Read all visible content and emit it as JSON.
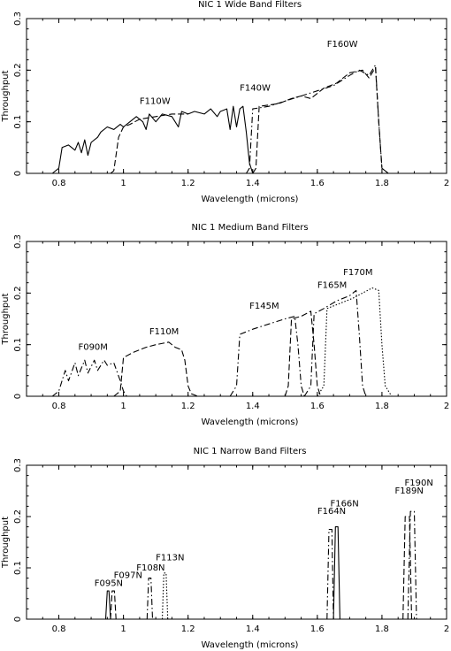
{
  "chart_data": [
    {
      "type": "line",
      "title": "NIC 1 Wide Band Filters",
      "xlabel": "Wavelength (microns)",
      "ylabel": "Throughput",
      "xlim": [
        0.7,
        2.0
      ],
      "ylim": [
        0,
        0.3
      ],
      "x_ticks": [
        "0.8",
        "1",
        "1.2",
        "1.4",
        "1.6",
        "1.8",
        "2"
      ],
      "y_ticks": [
        "0",
        "0.1",
        "0.2",
        "0.3"
      ],
      "grid": false,
      "series": [
        {
          "name": "F110W",
          "style": "solid",
          "points": [
            [
              0.78,
              0
            ],
            [
              0.8,
              0.01
            ],
            [
              0.81,
              0.05
            ],
            [
              0.83,
              0.055
            ],
            [
              0.85,
              0.045
            ],
            [
              0.86,
              0.06
            ],
            [
              0.87,
              0.04
            ],
            [
              0.88,
              0.065
            ],
            [
              0.89,
              0.035
            ],
            [
              0.9,
              0.06
            ],
            [
              0.92,
              0.07
            ],
            [
              0.93,
              0.08
            ],
            [
              0.95,
              0.09
            ],
            [
              0.97,
              0.085
            ],
            [
              0.99,
              0.095
            ],
            [
              1.0,
              0.09
            ],
            [
              1.02,
              0.1
            ],
            [
              1.04,
              0.11
            ],
            [
              1.06,
              0.1
            ],
            [
              1.07,
              0.085
            ],
            [
              1.08,
              0.115
            ],
            [
              1.1,
              0.1
            ],
            [
              1.12,
              0.115
            ],
            [
              1.15,
              0.11
            ],
            [
              1.17,
              0.09
            ],
            [
              1.18,
              0.12
            ],
            [
              1.2,
              0.115
            ],
            [
              1.22,
              0.12
            ],
            [
              1.25,
              0.115
            ],
            [
              1.27,
              0.125
            ],
            [
              1.29,
              0.11
            ],
            [
              1.3,
              0.12
            ],
            [
              1.32,
              0.125
            ],
            [
              1.33,
              0.085
            ],
            [
              1.34,
              0.13
            ],
            [
              1.35,
              0.09
            ],
            [
              1.36,
              0.125
            ],
            [
              1.37,
              0.13
            ],
            [
              1.38,
              0.08
            ],
            [
              1.39,
              0.02
            ],
            [
              1.4,
              0
            ]
          ]
        },
        {
          "name": "F140W",
          "style": "dashdot",
          "points": [
            [
              1.38,
              0
            ],
            [
              1.39,
              0.01
            ],
            [
              1.4,
              0.125
            ],
            [
              1.45,
              0.13
            ],
            [
              1.5,
              0.14
            ],
            [
              1.55,
              0.15
            ],
            [
              1.6,
              0.16
            ],
            [
              1.65,
              0.17
            ],
            [
              1.7,
              0.19
            ],
            [
              1.73,
              0.2
            ],
            [
              1.76,
              0.19
            ],
            [
              1.78,
              0.21
            ],
            [
              1.79,
              0.1
            ],
            [
              1.8,
              0.01
            ],
            [
              1.82,
              0
            ]
          ]
        },
        {
          "name": "F160W",
          "style": "dashed",
          "points": [
            [
              1.4,
              0
            ],
            [
              1.41,
              0.01
            ],
            [
              1.42,
              0.13
            ],
            [
              1.48,
              0.135
            ],
            [
              1.52,
              0.145
            ],
            [
              1.55,
              0.15
            ],
            [
              1.58,
              0.145
            ],
            [
              1.62,
              0.165
            ],
            [
              1.66,
              0.175
            ],
            [
              1.7,
              0.195
            ],
            [
              1.74,
              0.2
            ],
            [
              1.76,
              0.185
            ],
            [
              1.78,
              0.205
            ],
            [
              1.79,
              0.1
            ],
            [
              1.8,
              0.01
            ],
            [
              1.82,
              0
            ]
          ]
        },
        {
          "name": "",
          "style": "dashed",
          "points": [
            [
              0.96,
              0
            ],
            [
              0.97,
              0.005
            ],
            [
              0.985,
              0.07
            ],
            [
              1.0,
              0.09
            ],
            [
              1.02,
              0.095
            ],
            [
              1.05,
              0.105
            ],
            [
              1.1,
              0.11
            ],
            [
              1.15,
              0.115
            ],
            [
              1.2,
              0.115
            ]
          ]
        }
      ],
      "labels": [
        {
          "text": "F110W",
          "x": 1.05,
          "y": 0.135
        },
        {
          "text": "F140W",
          "x": 1.36,
          "y": 0.16
        },
        {
          "text": "F160W",
          "x": 1.63,
          "y": 0.245
        }
      ]
    },
    {
      "type": "line",
      "title": "NIC 1 Medium Band Filters",
      "xlabel": "Wavelength (microns)",
      "ylabel": "Throughput",
      "xlim": [
        0.7,
        2.0
      ],
      "ylim": [
        0,
        0.3
      ],
      "x_ticks": [
        "0.8",
        "1",
        "1.2",
        "1.4",
        "1.6",
        "1.8",
        "2"
      ],
      "y_ticks": [
        "0",
        "0.1",
        "0.2",
        "0.3"
      ],
      "grid": false,
      "series": [
        {
          "name": "F090M",
          "style": "dashdot",
          "points": [
            [
              0.78,
              0
            ],
            [
              0.8,
              0.01
            ],
            [
              0.82,
              0.05
            ],
            [
              0.83,
              0.03
            ],
            [
              0.85,
              0.065
            ],
            [
              0.86,
              0.04
            ],
            [
              0.88,
              0.07
            ],
            [
              0.89,
              0.045
            ],
            [
              0.91,
              0.07
            ],
            [
              0.92,
              0.05
            ],
            [
              0.94,
              0.07
            ],
            [
              0.95,
              0.06
            ],
            [
              0.97,
              0.065
            ],
            [
              0.99,
              0.03
            ],
            [
              1.0,
              0.01
            ],
            [
              1.01,
              0
            ]
          ]
        },
        {
          "name": "F110M",
          "style": "dashed",
          "points": [
            [
              0.97,
              0
            ],
            [
              0.99,
              0.01
            ],
            [
              1.0,
              0.075
            ],
            [
              1.03,
              0.085
            ],
            [
              1.07,
              0.095
            ],
            [
              1.1,
              0.1
            ],
            [
              1.14,
              0.105
            ],
            [
              1.16,
              0.095
            ],
            [
              1.18,
              0.09
            ],
            [
              1.19,
              0.07
            ],
            [
              1.2,
              0.02
            ],
            [
              1.21,
              0.005
            ],
            [
              1.23,
              0
            ]
          ]
        },
        {
          "name": "F145M",
          "style": "dashdot",
          "points": [
            [
              1.33,
              0
            ],
            [
              1.35,
              0.02
            ],
            [
              1.36,
              0.12
            ],
            [
              1.4,
              0.13
            ],
            [
              1.45,
              0.14
            ],
            [
              1.5,
              0.15
            ],
            [
              1.53,
              0.155
            ],
            [
              1.54,
              0.1
            ],
            [
              1.55,
              0.02
            ],
            [
              1.56,
              0
            ]
          ]
        },
        {
          "name": "F165M",
          "style": "dashed",
          "points": [
            [
              1.5,
              0
            ],
            [
              1.51,
              0.02
            ],
            [
              1.52,
              0.15
            ],
            [
              1.55,
              0.155
            ],
            [
              1.58,
              0.165
            ],
            [
              1.59,
              0.1
            ],
            [
              1.6,
              0.02
            ],
            [
              1.61,
              0
            ]
          ]
        },
        {
          "name": "",
          "style": "dashdot",
          "points": [
            [
              1.56,
              0
            ],
            [
              1.58,
              0.02
            ],
            [
              1.59,
              0.16
            ],
            [
              1.62,
              0.17
            ],
            [
              1.66,
              0.185
            ],
            [
              1.7,
              0.195
            ],
            [
              1.72,
              0.205
            ],
            [
              1.73,
              0.12
            ],
            [
              1.74,
              0.02
            ],
            [
              1.75,
              0
            ]
          ]
        },
        {
          "name": "F170M",
          "style": "dotted",
          "points": [
            [
              1.6,
              0
            ],
            [
              1.62,
              0.02
            ],
            [
              1.63,
              0.17
            ],
            [
              1.67,
              0.18
            ],
            [
              1.71,
              0.19
            ],
            [
              1.74,
              0.2
            ],
            [
              1.77,
              0.21
            ],
            [
              1.79,
              0.205
            ],
            [
              1.8,
              0.1
            ],
            [
              1.81,
              0.02
            ],
            [
              1.83,
              0
            ]
          ]
        }
      ],
      "labels": [
        {
          "text": "F090M",
          "x": 0.86,
          "y": 0.09
        },
        {
          "text": "F110M",
          "x": 1.08,
          "y": 0.12
        },
        {
          "text": "F145M",
          "x": 1.39,
          "y": 0.17
        },
        {
          "text": "F165M",
          "x": 1.6,
          "y": 0.21
        },
        {
          "text": "F170M",
          "x": 1.68,
          "y": 0.235
        }
      ]
    },
    {
      "type": "line",
      "title": "NIC 1 Narrow Band Filters",
      "xlabel": "Wavelength (microns)",
      "ylabel": "Throughput",
      "xlim": [
        0.7,
        2.0
      ],
      "ylim": [
        0,
        0.3
      ],
      "x_ticks": [
        "0.8",
        "1",
        "1.2",
        "1.4",
        "1.6",
        "1.8",
        "2"
      ],
      "y_ticks": [
        "0",
        "0.1",
        "0.2",
        "0.3"
      ],
      "grid": false,
      "series": [
        {
          "name": "F095N",
          "style": "solid",
          "points": [
            [
              0.945,
              0
            ],
            [
              0.95,
              0.055
            ],
            [
              0.955,
              0.055
            ],
            [
              0.96,
              0
            ]
          ]
        },
        {
          "name": "F097N",
          "style": "dashed",
          "points": [
            [
              0.96,
              0
            ],
            [
              0.965,
              0.055
            ],
            [
              0.972,
              0.055
            ],
            [
              0.977,
              0
            ]
          ]
        },
        {
          "name": "F108N",
          "style": "dashdot",
          "points": [
            [
              1.073,
              0
            ],
            [
              1.078,
              0.08
            ],
            [
              1.085,
              0.08
            ],
            [
              1.09,
              0
            ]
          ]
        },
        {
          "name": "F113N",
          "style": "dotted",
          "points": [
            [
              1.12,
              0
            ],
            [
              1.125,
              0.09
            ],
            [
              1.132,
              0.09
            ],
            [
              1.137,
              0
            ]
          ]
        },
        {
          "name": "F164N",
          "style": "dashdot",
          "points": [
            [
              1.63,
              0
            ],
            [
              1.636,
              0.175
            ],
            [
              1.645,
              0.175
            ],
            [
              1.65,
              0
            ]
          ]
        },
        {
          "name": "F166N",
          "style": "solid",
          "points": [
            [
              1.65,
              0
            ],
            [
              1.656,
              0.18
            ],
            [
              1.664,
              0.18
            ],
            [
              1.67,
              0
            ]
          ]
        },
        {
          "name": "F189N",
          "style": "dashed",
          "points": [
            [
              1.865,
              0
            ],
            [
              1.872,
              0.2
            ],
            [
              1.885,
              0.2
            ],
            [
              1.892,
              0
            ]
          ]
        },
        {
          "name": "F190N",
          "style": "dashdot",
          "points": [
            [
              1.88,
              0
            ],
            [
              1.888,
              0.21
            ],
            [
              1.9,
              0.21
            ],
            [
              1.907,
              0
            ]
          ]
        }
      ],
      "labels": [
        {
          "text": "F095N",
          "x": 0.91,
          "y": 0.065
        },
        {
          "text": "F097N",
          "x": 0.97,
          "y": 0.08
        },
        {
          "text": "F108N",
          "x": 1.04,
          "y": 0.095
        },
        {
          "text": "F113N",
          "x": 1.1,
          "y": 0.115
        },
        {
          "text": "F164N",
          "x": 1.6,
          "y": 0.205
        },
        {
          "text": "F166N",
          "x": 1.64,
          "y": 0.22
        },
        {
          "text": "F189N",
          "x": 1.84,
          "y": 0.245
        },
        {
          "text": "F190N",
          "x": 1.87,
          "y": 0.26
        }
      ]
    }
  ]
}
